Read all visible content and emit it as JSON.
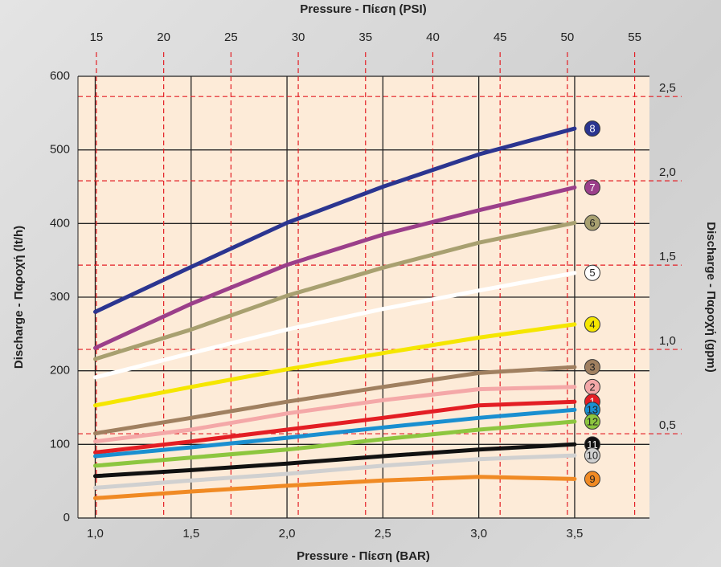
{
  "chart_data": {
    "type": "line",
    "xlabel": "Pressure - Πίεση (BAR)",
    "x2label": "Pressure - Πίεση (PSI)",
    "ylabel": "Discharge - Παροχή (lt/h)",
    "y2label": "Discharge - Παροχή (gpm)",
    "x": [
      1.0,
      1.5,
      2.0,
      2.5,
      3.0,
      3.5
    ],
    "xlim": [
      0.91,
      3.89
    ],
    "xticks": [
      {
        "value": 1.0,
        "label": "1,0"
      },
      {
        "value": 1.5,
        "label": "1,5"
      },
      {
        "value": 2.0,
        "label": "2,0"
      },
      {
        "value": 2.5,
        "label": "2,5"
      },
      {
        "value": 3.0,
        "label": "3,0"
      },
      {
        "value": 3.5,
        "label": "3,5"
      }
    ],
    "x2lim": [
      13.63,
      56.1
    ],
    "x2ticks": [
      15,
      20,
      25,
      30,
      35,
      40,
      45,
      50,
      55
    ],
    "ylim": [
      0,
      600
    ],
    "yticks": [
      0,
      100,
      200,
      300,
      400,
      500,
      600
    ],
    "y2lim": [
      0,
      2.62
    ],
    "y2ticks": [
      {
        "value": 0.5,
        "label": "0,5"
      },
      {
        "value": 1.0,
        "label": "1,0"
      },
      {
        "value": 1.5,
        "label": "1,5"
      },
      {
        "value": 2.0,
        "label": "2,0"
      },
      {
        "value": 2.5,
        "label": "2,5"
      }
    ],
    "grid": true,
    "series": [
      {
        "name": "8",
        "color": "#2b3590",
        "values": [
          280,
          341,
          401,
          450,
          494,
          529
        ]
      },
      {
        "name": "7",
        "color": "#9b3f8a",
        "values": [
          231,
          291,
          344,
          385,
          418,
          449
        ]
      },
      {
        "name": "6",
        "color": "#a8a070",
        "values": [
          216,
          256,
          302,
          340,
          374,
          401
        ]
      },
      {
        "name": "5",
        "color": "#ffffff",
        "values": [
          191,
          224,
          256,
          284,
          309,
          333
        ]
      },
      {
        "name": "4",
        "color": "#f5e600",
        "values": [
          153,
          178,
          202,
          224,
          245,
          263
        ]
      },
      {
        "name": "3",
        "color": "#a08060",
        "values": [
          115,
          136,
          158,
          178,
          197,
          205
        ]
      },
      {
        "name": "2",
        "color": "#f4a8a8",
        "values": [
          104,
          120,
          142,
          160,
          175,
          178
        ]
      },
      {
        "name": "1",
        "color": "#e31e24",
        "values": [
          89,
          104,
          120,
          136,
          153,
          158
        ]
      },
      {
        "name": "13",
        "color": "#1a8fd0",
        "values": [
          84,
          96,
          109,
          123,
          136,
          147
        ]
      },
      {
        "name": "12",
        "color": "#8dc63f",
        "values": [
          71,
          82,
          93,
          107,
          120,
          131
        ]
      },
      {
        "name": "11",
        "color": "#111111",
        "values": [
          57,
          65,
          74,
          84,
          93,
          100
        ]
      },
      {
        "name": "10",
        "color": "#d0d0d0",
        "values": [
          41,
          51,
          60,
          71,
          80,
          85
        ]
      },
      {
        "name": "9",
        "color": "#f08a24",
        "values": [
          27,
          36,
          44,
          51,
          56,
          53
        ]
      }
    ]
  }
}
